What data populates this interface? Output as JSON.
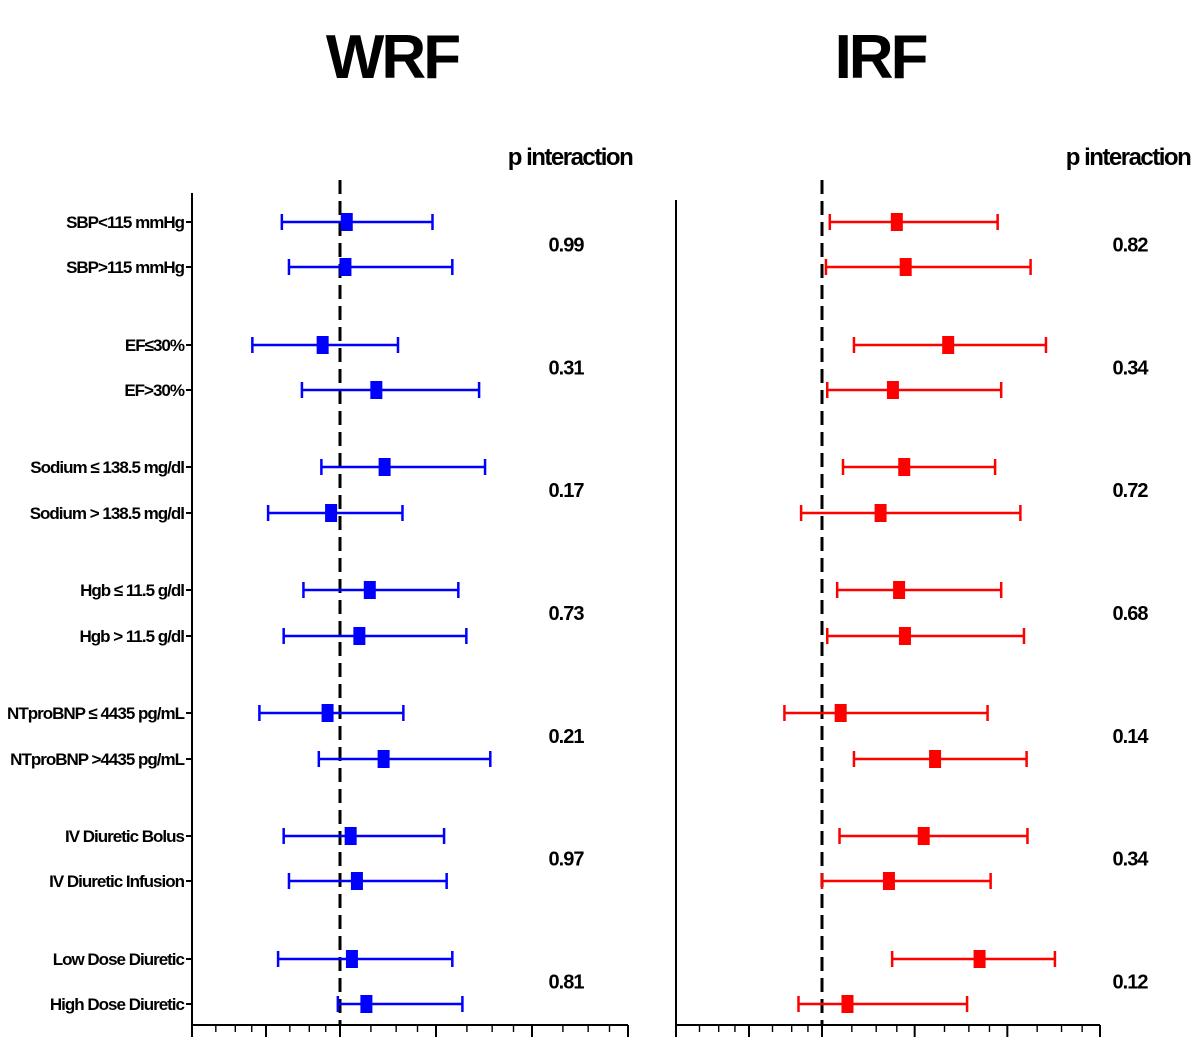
{
  "chart_data": [
    {
      "type": "forest",
      "title": "WRF",
      "p_header": "p interaction",
      "color": "#0000ff",
      "categories": [
        "SBP<115 mmHg",
        "SBP>115 mmHg",
        "EF≤30%",
        "EF>30%",
        "Sodium ≤ 138.5 mg/dl",
        "Sodium > 138.5 mg/dl",
        "Hgb ≤ 11.5 g/dl",
        "Hgb > 11.5 g/dl",
        "NTproBNP ≤ 4435 pg/mL",
        "NTproBNP >4435 pg/mL",
        "IV Diuretic Bolus",
        "IV Diuretic Infusion",
        "Low Dose Diuretic",
        "High Dose Diuretic"
      ],
      "estimates": [
        1.05,
        1.04,
        0.85,
        1.3,
        1.38,
        0.92,
        1.24,
        1.15,
        0.89,
        1.37,
        1.08,
        1.13,
        1.09,
        1.21
      ],
      "lower": [
        0.58,
        0.62,
        0.44,
        0.7,
        0.84,
        0.51,
        0.71,
        0.59,
        0.47,
        0.82,
        0.59,
        0.62,
        0.56,
        0.98
      ],
      "upper": [
        1.95,
        2.25,
        1.52,
        2.73,
        2.85,
        1.57,
        2.35,
        2.49,
        1.58,
        2.96,
        2.12,
        2.16,
        2.25,
        2.42
      ],
      "p_interaction": [
        "0.99",
        "0.31",
        "0.17",
        "0.73",
        "0.21",
        "0.97",
        "0.81"
      ],
      "reference_x": 1,
      "xscale": "log",
      "xlim": [
        0.25,
        8
      ]
    },
    {
      "type": "forest",
      "title": "IRF",
      "p_header": "p interaction",
      "color": "#ff0000",
      "categories": [
        "SBP<115 mmHg",
        "SBP>115 mmHg",
        "EF≤30%",
        "EF>30%",
        "Sodium ≤ 138.5 mg/dl",
        "Sodium > 138.5 mg/dl",
        "Hgb ≤ 11.5 g/dl",
        "Hgb > 11.5 g/dl",
        "NTproBNP ≤ 4435 pg/mL",
        "NTproBNP >4435 pg/mL",
        "IV Diuretic Bolus",
        "IV Diuretic Infusion",
        "Low Dose Diuretic",
        "High Dose Diuretic"
      ],
      "estimates": [
        1.75,
        1.87,
        2.57,
        1.7,
        1.85,
        1.55,
        1.78,
        1.86,
        1.15,
        2.33,
        2.14,
        1.65,
        3.25,
        1.21
      ],
      "lower": [
        1.06,
        1.03,
        1.27,
        1.04,
        1.17,
        0.82,
        1.12,
        1.04,
        0.7,
        1.27,
        1.14,
        1.0,
        1.69,
        0.8
      ],
      "upper": [
        3.72,
        4.76,
        5.34,
        3.82,
        3.65,
        4.41,
        3.82,
        4.53,
        3.45,
        4.62,
        4.65,
        3.53,
        5.71,
        2.96
      ],
      "p_interaction": [
        "0.82",
        "0.34",
        "0.72",
        "0.68",
        "0.14",
        "0.34",
        "0.12"
      ],
      "reference_x": 1,
      "xscale": "log",
      "xlim": [
        0.25,
        8
      ]
    }
  ]
}
